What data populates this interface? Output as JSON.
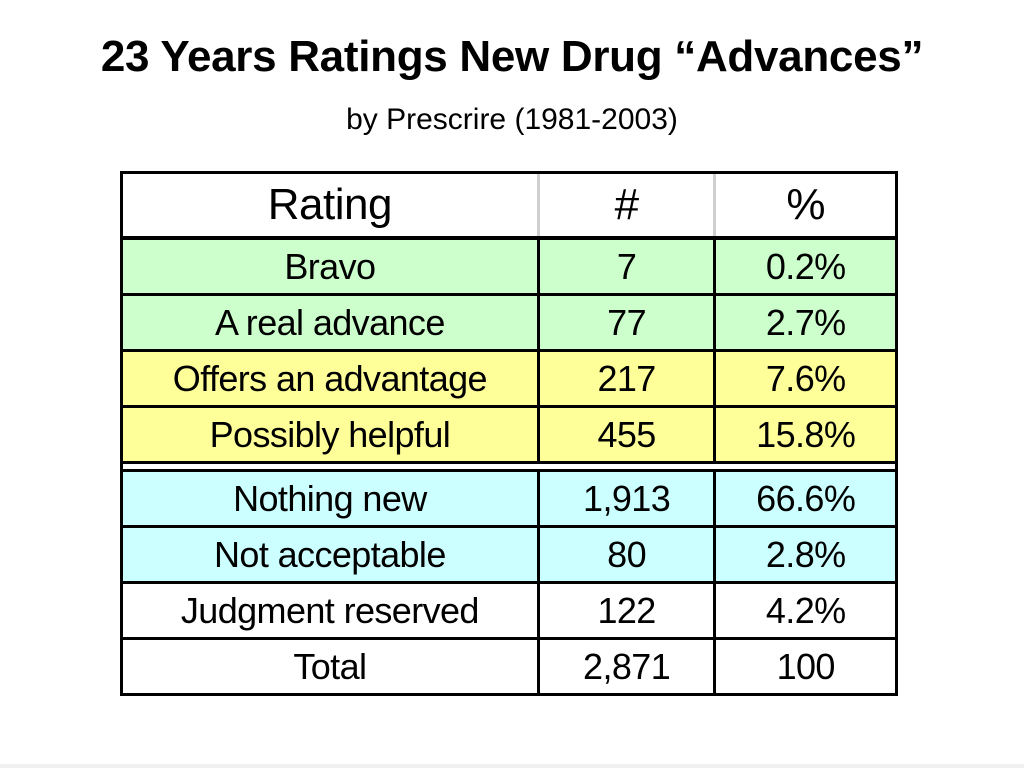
{
  "title": "23 Years Ratings New Drug “Advances”",
  "subtitle": "by Prescrire (1981-2003)",
  "colors": {
    "green": "#ccffcc",
    "yellow": "#ffff99",
    "blue": "#ccffff",
    "white": "#ffffff"
  },
  "table": {
    "headers": [
      "Rating",
      "#",
      "%"
    ],
    "rows": [
      {
        "rating": "Bravo",
        "count": "7",
        "percent": "0.2%",
        "fill": "green"
      },
      {
        "rating": "A real advance",
        "count": "77",
        "percent": "2.7%",
        "fill": "green"
      },
      {
        "rating": "Offers an advantage",
        "count": "217",
        "percent": "7.6%",
        "fill": "yellow"
      },
      {
        "rating": "Possibly helpful",
        "count": "455",
        "percent": "15.8%",
        "fill": "yellow"
      },
      {
        "rating": "Nothing new",
        "count": "1,913",
        "percent": "66.6%",
        "fill": "blue"
      },
      {
        "rating": "Not acceptable",
        "count": "80",
        "percent": "2.8%",
        "fill": "blue"
      },
      {
        "rating": "Judgment reserved",
        "count": "122",
        "percent": "4.2%",
        "fill": "white"
      },
      {
        "rating": "Total",
        "count": "2,871",
        "percent": "100",
        "fill": "white"
      }
    ]
  }
}
